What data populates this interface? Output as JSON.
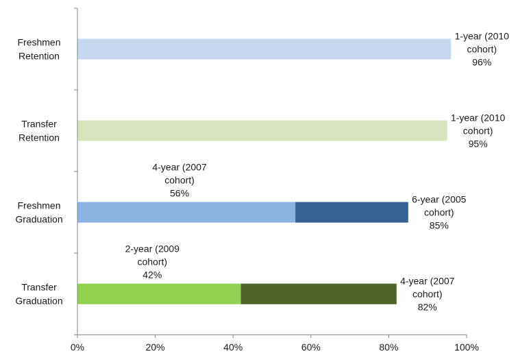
{
  "chart_data": {
    "type": "bar",
    "orientation": "horizontal",
    "stacked": true,
    "categories": [
      [
        "Freshmen",
        "Retention"
      ],
      [
        "Transfer",
        "Retention"
      ],
      [
        "Freshmen",
        "Graduation"
      ],
      [
        "Transfer",
        "Graduation"
      ]
    ],
    "bars": [
      {
        "segments": [
          {
            "start": 0,
            "end": 96,
            "color": "#c6d9f1",
            "label": [
              "1-year (2010",
              "cohort)",
              "96%"
            ],
            "label_pos": "right"
          }
        ]
      },
      {
        "segments": [
          {
            "start": 0,
            "end": 95,
            "color": "#d7e4bd",
            "label": [
              "1-year (2010",
              "cohort)",
              "95%"
            ],
            "label_pos": "right"
          }
        ]
      },
      {
        "segments": [
          {
            "start": 0,
            "end": 56,
            "color": "#8db3e2",
            "label": [
              "4-year (2007",
              "cohort)",
              "56%"
            ],
            "label_pos": "above"
          },
          {
            "start": 56,
            "end": 85,
            "color": "#366092",
            "label": [
              "6-year (2005",
              "cohort)",
              "85%"
            ],
            "label_pos": "right"
          }
        ]
      },
      {
        "segments": [
          {
            "start": 0,
            "end": 42,
            "color": "#92d050",
            "label": [
              "2-year (2009",
              "cohort)",
              "42%"
            ],
            "label_pos": "above"
          },
          {
            "start": 42,
            "end": 82,
            "color": "#4f6228",
            "label": [
              "4-year (2007",
              "cohort)",
              "82%"
            ],
            "label_pos": "right"
          }
        ]
      }
    ],
    "xlim": [
      0,
      100
    ],
    "xticks": [
      0,
      20,
      40,
      60,
      80,
      100
    ],
    "xtick_labels": [
      "0%",
      "20%",
      "40%",
      "60%",
      "80%",
      "100%"
    ],
    "grid": false,
    "legend": "none",
    "axis_color": "#868686"
  }
}
